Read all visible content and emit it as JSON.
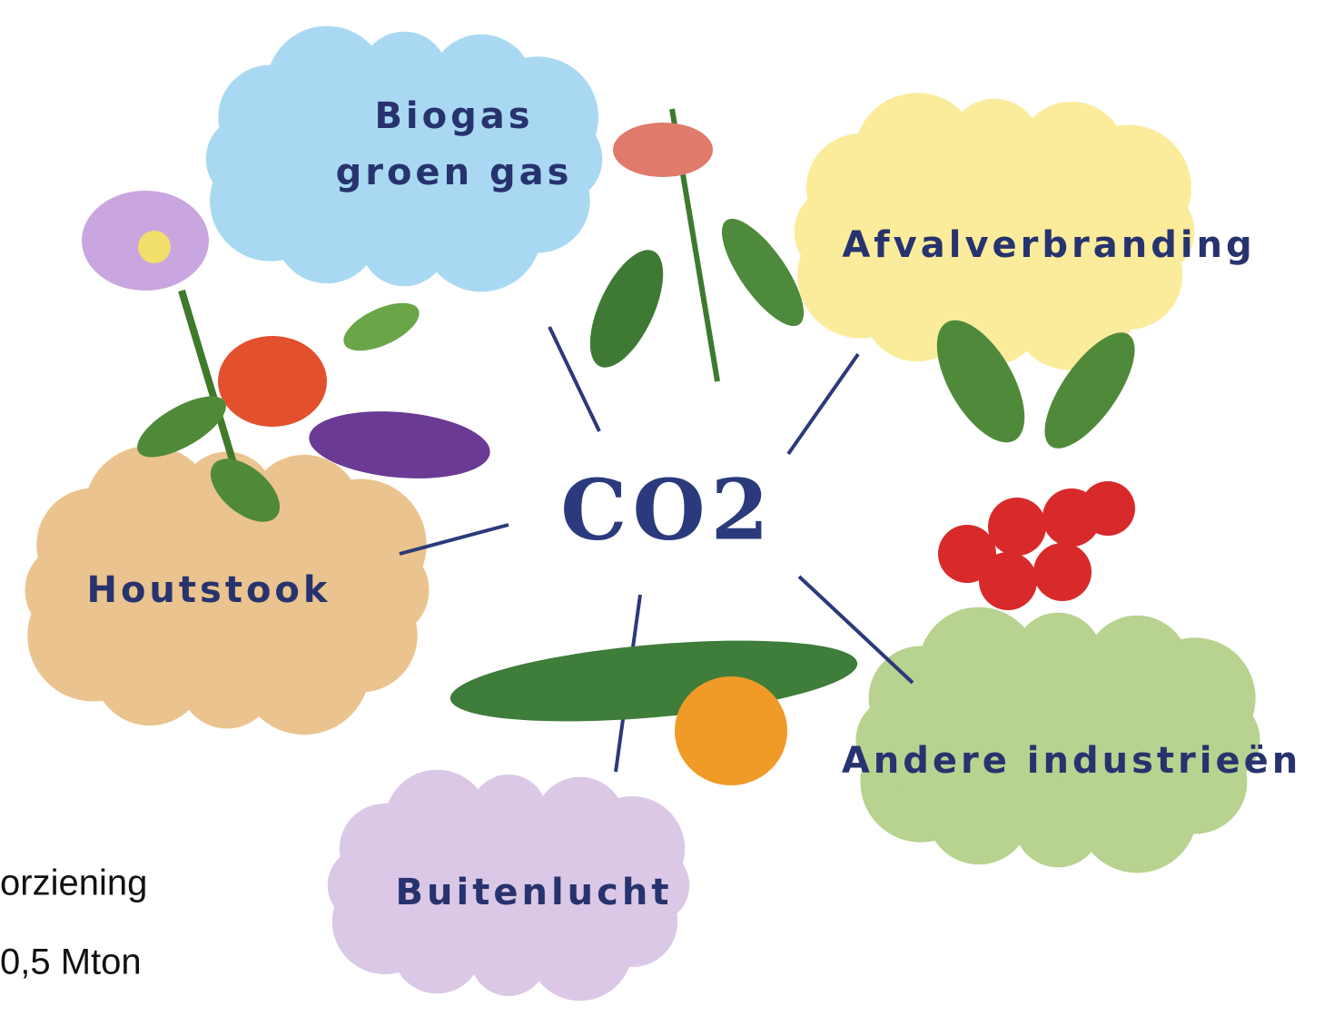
{
  "center": {
    "label": "CO2"
  },
  "nodes": [
    {
      "lines": [
        "Biogas",
        "groen gas"
      ]
    },
    {
      "lines": [
        "Afvalverbranding"
      ]
    },
    {
      "lines": [
        "Houtstook"
      ]
    },
    {
      "lines": [
        "Andere industrieën"
      ]
    },
    {
      "lines": [
        "Buitenlucht"
      ]
    }
  ],
  "fragments": [
    "orziening",
    "0,5 Mton"
  ]
}
